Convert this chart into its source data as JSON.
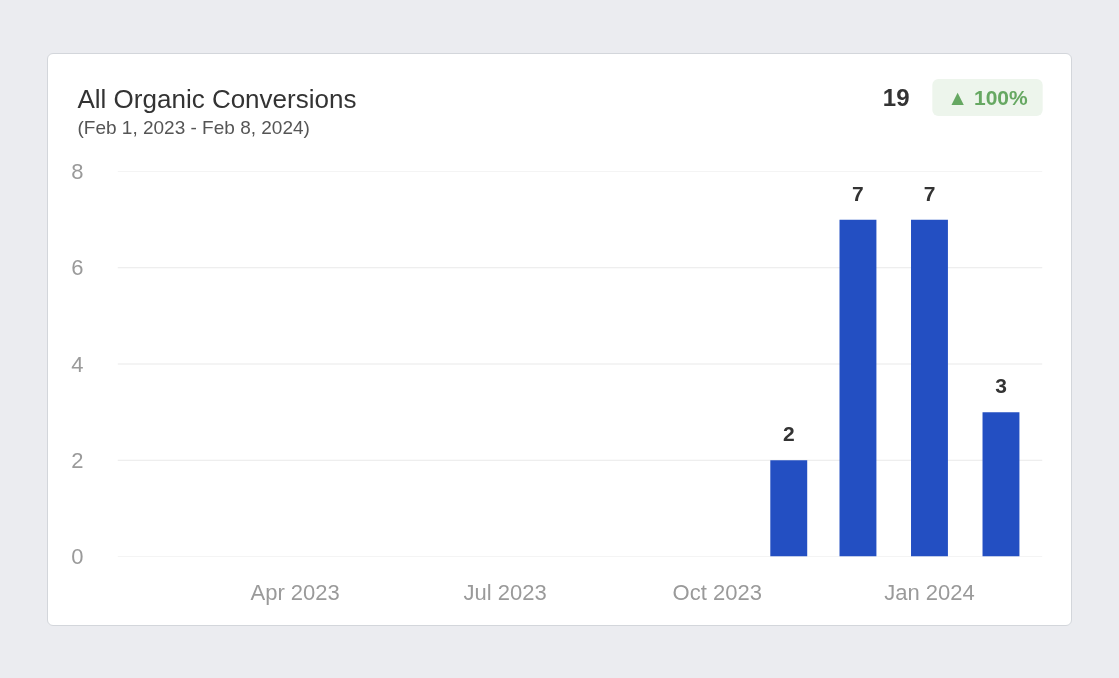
{
  "chart_data": {
    "type": "bar",
    "title": "All Organic Conversions",
    "subtitle": "(Feb 1, 2023 - Feb 8, 2024)",
    "x": [
      "2023-11",
      "2023-12",
      "2024-01",
      "2024-02"
    ],
    "values": [
      2,
      7,
      7,
      3
    ],
    "color": "#234fc2",
    "xlim": [
      "2023-01-14",
      "2024-02-19"
    ],
    "xticks": [
      {
        "value": "2023-04",
        "label": "Apr 2023"
      },
      {
        "value": "2023-07",
        "label": "Jul 2023"
      },
      {
        "value": "2023-10",
        "label": "Oct 2023"
      },
      {
        "value": "2024-01",
        "label": "Jan 2024"
      }
    ],
    "ylim": [
      0,
      8
    ],
    "yticks": [
      0,
      2,
      4,
      6,
      8
    ],
    "grid": "y",
    "data_labels": true,
    "annotations": [
      "19",
      "▲ 100%"
    ]
  }
}
